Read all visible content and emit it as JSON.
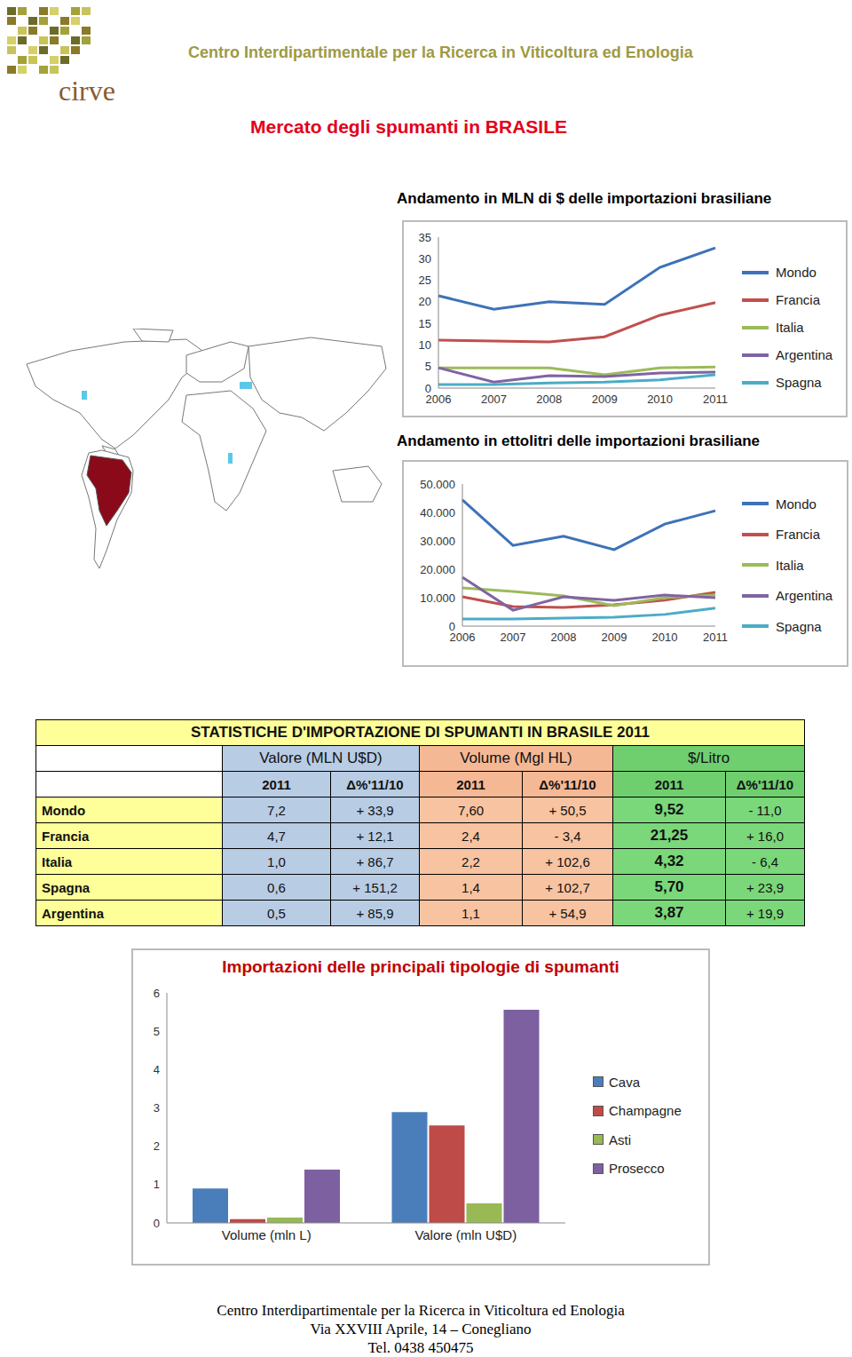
{
  "header": {
    "logo": "cirve",
    "org": "Centro Interdipartimentale per la Ricerca in Viticoltura ed Enologia"
  },
  "title": "Mercato degli spumanti in BRASILE",
  "chart_data": [
    {
      "type": "line",
      "title": "Andamento in MLN di $ delle importazioni brasiliane",
      "categories": [
        "2006",
        "2007",
        "2008",
        "2009",
        "2010",
        "2011"
      ],
      "ylim": [
        0,
        35
      ],
      "yticks": [
        0,
        5,
        10,
        15,
        20,
        25,
        30,
        35
      ],
      "grid": false,
      "legend": "right",
      "series": [
        {
          "name": "Mondo",
          "color": "#3e72b8",
          "values": [
            21.4,
            18.3,
            20,
            19.4,
            28,
            32.5
          ]
        },
        {
          "name": "Francia",
          "color": "#c0504d",
          "values": [
            11.1,
            10.9,
            10.7,
            11.9,
            16.9,
            19.8
          ]
        },
        {
          "name": "Italia",
          "color": "#9bbb59",
          "values": [
            4.7,
            4.7,
            4.7,
            3.1,
            4.7,
            4.9
          ]
        },
        {
          "name": "Argentina",
          "color": "#8064a2",
          "values": [
            4.7,
            1.4,
            2.9,
            2.7,
            3.5,
            3.7
          ]
        },
        {
          "name": "Spagna",
          "color": "#4bacc6",
          "values": [
            0.8,
            0.8,
            1.2,
            1.4,
            1.9,
            3.1
          ]
        }
      ]
    },
    {
      "type": "line",
      "title": "Andamento in ettolitri delle importazioni brasiliane",
      "categories": [
        "2006",
        "2007",
        "2008",
        "2009",
        "2010",
        "2011"
      ],
      "ylim": [
        0,
        50000
      ],
      "yticks": [
        0,
        {
          "value": 10000,
          "label": "10.000"
        },
        {
          "value": 20000,
          "label": "20.000"
        },
        {
          "value": 30000,
          "label": "30.000"
        },
        {
          "value": 40000,
          "label": "40.000"
        },
        {
          "value": 50000,
          "label": "50.000"
        }
      ],
      "grid": false,
      "legend": "right",
      "series": [
        {
          "name": "Mondo",
          "color": "#3e72b8",
          "values": [
            44400,
            28400,
            31600,
            26900,
            35900,
            40600
          ]
        },
        {
          "name": "Francia",
          "color": "#c0504d",
          "values": [
            10300,
            6900,
            6600,
            7500,
            9100,
            11900
          ]
        },
        {
          "name": "Italia",
          "color": "#9bbb59",
          "values": [
            13400,
            12200,
            10600,
            7200,
            10000,
            10900
          ]
        },
        {
          "name": "Argentina",
          "color": "#8064a2",
          "values": [
            17200,
            5600,
            10300,
            9100,
            10900,
            10000
          ]
        },
        {
          "name": "Spagna",
          "color": "#4bacc6",
          "values": [
            2500,
            2500,
            2800,
            3100,
            4100,
            6300
          ]
        }
      ]
    },
    {
      "type": "bar",
      "title": "Importazioni delle principali tipologie di spumanti",
      "categories": [
        "Volume (mln L)",
        "Valore (mln U$D)"
      ],
      "ylim": [
        0,
        6
      ],
      "yticks": [
        0,
        1,
        2,
        3,
        4,
        5,
        6
      ],
      "grid": false,
      "legend": "right",
      "series": [
        {
          "name": "Cava",
          "color": "#4a7ebb",
          "values": [
            0.9,
            2.89
          ]
        },
        {
          "name": "Champagne",
          "color": "#be4b48",
          "values": [
            0.1,
            2.54
          ]
        },
        {
          "name": "Asti",
          "color": "#98b954",
          "values": [
            0.14,
            0.51
          ]
        },
        {
          "name": "Prosecco",
          "color": "#7d60a0",
          "values": [
            1.39,
            5.56
          ]
        }
      ]
    }
  ],
  "table": {
    "title": "STATISTICHE D'IMPORTAZIONE DI SPUMANTI IN BRASILE 2011",
    "groups": [
      "Valore (MLN U$D)",
      "Volume (Mgl HL)",
      "$/Litro"
    ],
    "subheaders": [
      "2011",
      "Δ%'11/10",
      "2011",
      "Δ%'11/10",
      "2011",
      "Δ%'11/10"
    ],
    "rows": [
      [
        "Mondo",
        "7,2",
        "+ 33,9",
        "7,60",
        "+ 50,5",
        "9,52",
        "- 11,0"
      ],
      [
        "Francia",
        "4,7",
        "+ 12,1",
        "2,4",
        "- 3,4",
        "21,25",
        "+ 16,0"
      ],
      [
        "Italia",
        "1,0",
        "+ 86,7",
        "2,2",
        "+ 102,6",
        "4,32",
        "- 6,4"
      ],
      [
        "Spagna",
        "0,6",
        "+ 151,2",
        "1,4",
        "+ 102,7",
        "5,70",
        "+ 23,9"
      ],
      [
        "Argentina",
        "0,5",
        "+ 85,9",
        "1,1",
        "+ 54,9",
        "3,87",
        "+ 19,9"
      ]
    ]
  },
  "footer": [
    "Centro Interdipartimentale per la Ricerca in Viticoltura ed Enologia",
    "Via XXVIII Aprile, 14 – Conegliano",
    "Tel. 0438 450475"
  ]
}
